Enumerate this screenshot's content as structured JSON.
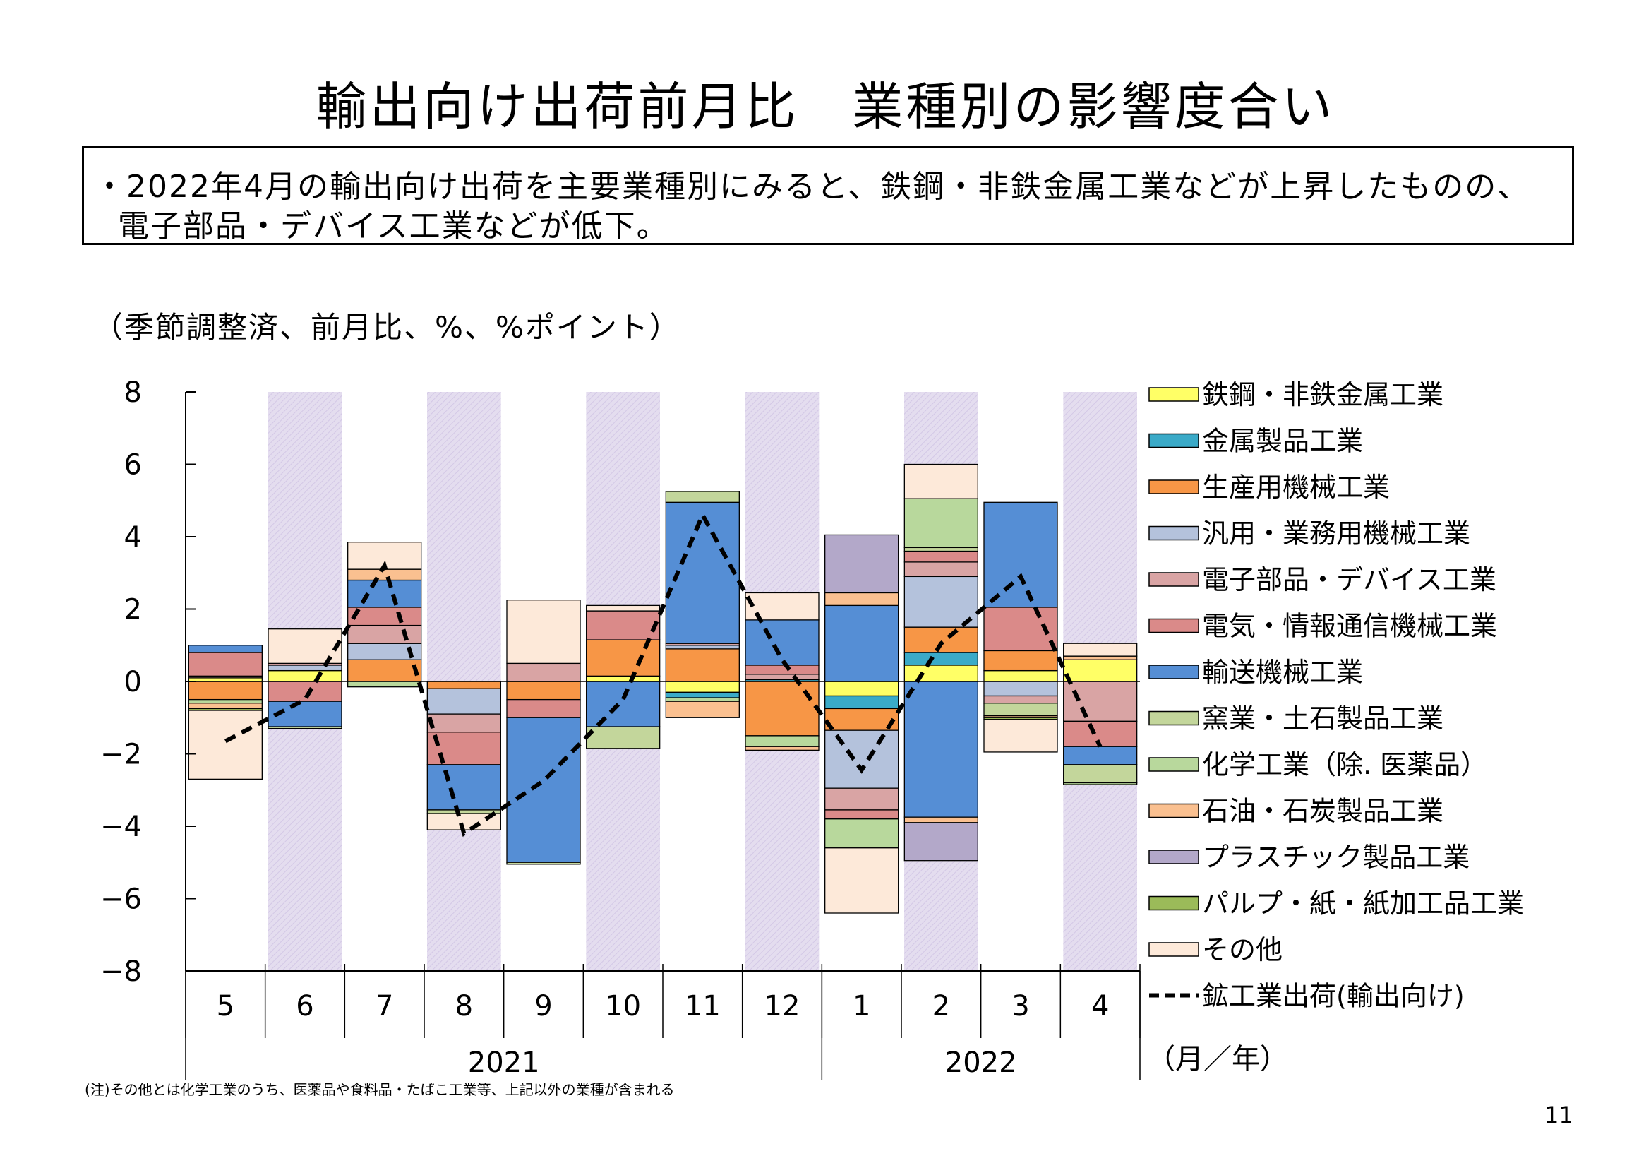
{
  "title": "輸出向け出荷前月比　業種別の影響度合い",
  "summary": {
    "line1": "・2022年4月の輸出向け出荷を主要業種別にみると、鉄鋼・非鉄金属工業などが上昇したものの、",
    "line2": "電子部品・デバイス工業などが低下。"
  },
  "units_label": "（季節調整済、前月比、%、%ポイント）",
  "note": "(注)その他とは化学工業のうち、医薬品や食料品・たばこ工業等、上記以外の業種が含まれる",
  "page_number": "11",
  "chart_data": {
    "type": "bar",
    "stacked": true,
    "categories": [
      "5",
      "6",
      "7",
      "8",
      "9",
      "10",
      "11",
      "12",
      "1",
      "2",
      "3",
      "4"
    ],
    "year_labels": [
      {
        "label": "2021",
        "from": 0,
        "to": 7
      },
      {
        "label": "2022",
        "from": 8,
        "to": 11
      }
    ],
    "shaded_categories": [
      1,
      3,
      5,
      7,
      9,
      11
    ],
    "shade_color": "#e4ddef",
    "ylim": [
      -8,
      8
    ],
    "yticks": [
      8,
      6,
      4,
      2,
      0,
      -2,
      -4,
      -6,
      -8
    ],
    "axis_unit_label": "（月／年）",
    "series": [
      {
        "name": "鉄鋼・非鉄金属工業",
        "color": "#ffff66",
        "values": [
          0.1,
          0.3,
          0.0,
          0.0,
          0.0,
          0.15,
          -0.3,
          0.0,
          -0.4,
          0.45,
          0.3,
          0.6
        ]
      },
      {
        "name": "金属製品工業",
        "color": "#3aaac8",
        "values": [
          0.0,
          0.0,
          0.0,
          0.0,
          0.0,
          0.0,
          -0.15,
          0.05,
          -0.35,
          0.35,
          0.0,
          0.0
        ]
      },
      {
        "name": "生産用機械工業",
        "color": "#f79646",
        "values": [
          -0.5,
          0.0,
          0.6,
          -0.2,
          -0.5,
          1.0,
          0.9,
          -1.5,
          -0.6,
          0.7,
          0.55,
          0.0
        ]
      },
      {
        "name": "汎用・業務用機械工業",
        "color": "#b4c2dc",
        "values": [
          0.0,
          0.15,
          0.45,
          -0.7,
          0.0,
          0.0,
          0.1,
          0.0,
          -1.6,
          1.4,
          -0.4,
          0.0
        ]
      },
      {
        "name": "電子部品・デバイス工業",
        "color": "#d9a4a4",
        "values": [
          0.05,
          0.05,
          0.5,
          -0.5,
          0.5,
          0.0,
          0.05,
          0.15,
          -0.6,
          0.4,
          -0.2,
          -1.1
        ]
      },
      {
        "name": "電気・情報通信機械工業",
        "color": "#da8a89",
        "values": [
          0.65,
          -0.55,
          0.5,
          -0.9,
          -0.5,
          0.8,
          0.0,
          0.25,
          -0.25,
          0.3,
          1.2,
          -0.7
        ]
      },
      {
        "name": "輸送機械工業",
        "color": "#558ed5",
        "values": [
          0.2,
          -0.7,
          0.75,
          -1.25,
          -4.0,
          -1.25,
          3.9,
          1.25,
          2.1,
          -3.75,
          2.9,
          -0.5
        ]
      },
      {
        "name": "窯業・土石製品工業",
        "color": "#c3d69b",
        "values": [
          0.0,
          -0.05,
          0.0,
          -0.1,
          -0.05,
          -0.6,
          0.3,
          0.0,
          0.0,
          0.1,
          -0.35,
          -0.5
        ]
      },
      {
        "name": "化学工業（除. 医薬品）",
        "color": "#b8d89c",
        "values": [
          -0.1,
          0.0,
          -0.15,
          0.0,
          0.0,
          0.0,
          -0.1,
          -0.3,
          -0.8,
          1.35,
          0.0,
          -0.05
        ]
      },
      {
        "name": "石油・石炭製品工業",
        "color": "#fac090",
        "values": [
          -0.15,
          0.0,
          0.3,
          0.0,
          0.0,
          0.0,
          -0.45,
          -0.1,
          0.35,
          -0.15,
          -0.05,
          0.1
        ]
      },
      {
        "name": "プラスチック製品工業",
        "color": "#b3a8c9",
        "values": [
          0.0,
          0.0,
          0.0,
          0.0,
          0.0,
          0.0,
          0.0,
          0.0,
          1.6,
          -1.05,
          0.0,
          0.0
        ]
      },
      {
        "name": "パルプ・紙・紙加工品工業",
        "color": "#9bbb59",
        "values": [
          -0.05,
          0.0,
          0.0,
          0.0,
          0.0,
          0.0,
          0.0,
          0.0,
          0.0,
          0.0,
          -0.05,
          0.0
        ]
      },
      {
        "name": "その他",
        "color": "#fde9d9",
        "values": [
          -1.9,
          0.95,
          0.75,
          -0.45,
          1.75,
          0.15,
          0.0,
          0.75,
          -1.8,
          0.95,
          -0.9,
          0.35
        ]
      }
    ],
    "line": {
      "name": "鉱工業出荷(輸出向け)",
      "color": "#000000",
      "dash": true,
      "values": [
        -1.65,
        -0.5,
        3.2,
        -4.2,
        -2.75,
        -0.5,
        4.6,
        0.6,
        -2.45,
        1.05,
        2.9,
        -1.8
      ]
    }
  }
}
